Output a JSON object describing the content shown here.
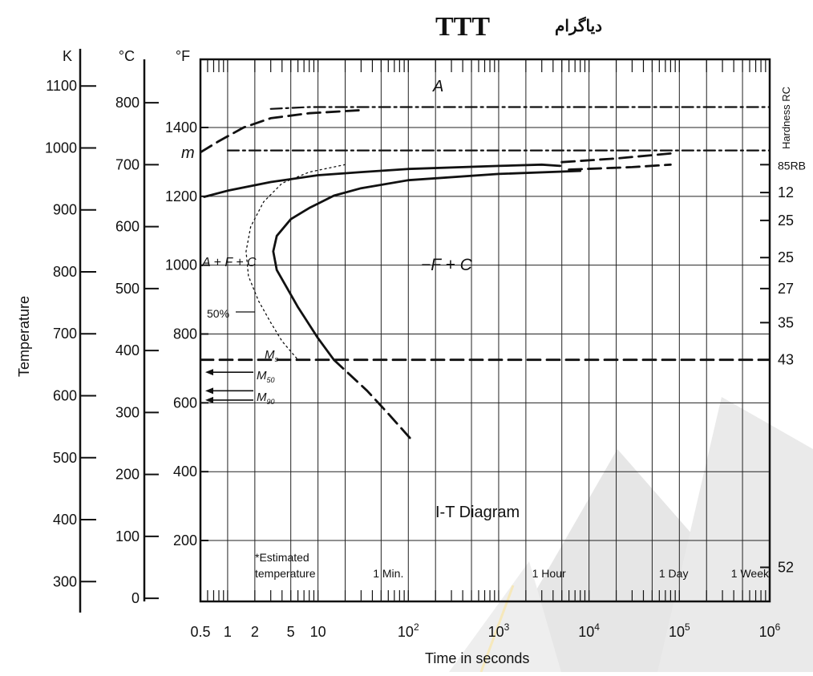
{
  "title": {
    "main": "TTT",
    "persian": "دیاگرام"
  },
  "chart_data": {
    "type": "line",
    "title": "I-T Diagram",
    "xlabel": "Time in seconds",
    "ylabel": "Temperature",
    "x_scale": "log",
    "xlim": [
      0.5,
      1000000
    ],
    "x_ticks": [
      {
        "value": 0.5,
        "label": "0.5"
      },
      {
        "value": 1,
        "label": "1"
      },
      {
        "value": 2,
        "label": "2"
      },
      {
        "value": 5,
        "label": "5"
      },
      {
        "value": 10,
        "label": "10"
      },
      {
        "value": 100,
        "label": "10",
        "sup": "2"
      },
      {
        "value": 1000,
        "label": "10",
        "sup": "3"
      },
      {
        "value": 10000,
        "label": "10",
        "sup": "4"
      },
      {
        "value": 100000,
        "label": "10",
        "sup": "5"
      },
      {
        "value": 1000000,
        "label": "10",
        "sup": "6"
      }
    ],
    "time_markers": [
      {
        "label": "1 Min.",
        "value": 60
      },
      {
        "label": "1 Hour",
        "value": 3600
      },
      {
        "label": "1 Day",
        "value": 86400
      },
      {
        "label": "1 Week",
        "value": 604800
      }
    ],
    "axes": {
      "kelvin": {
        "unit": "K",
        "ticks": [
          300,
          400,
          500,
          600,
          700,
          800,
          900,
          1000,
          1100
        ]
      },
      "celsius": {
        "unit": "°C",
        "ticks": [
          0,
          100,
          200,
          300,
          400,
          500,
          600,
          700,
          800
        ]
      },
      "fahrenheit": {
        "unit": "°F",
        "ticks": [
          200,
          400,
          600,
          800,
          1000,
          1200,
          1400
        ]
      }
    },
    "ylim_c": [
      -5,
      870
    ],
    "hardness": {
      "title": "Hardness RC",
      "labels": [
        {
          "label": "85RB",
          "c": 700
        },
        {
          "label": "12",
          "c": 655
        },
        {
          "label": "25",
          "c": 610
        },
        {
          "label": "25",
          "c": 550
        },
        {
          "label": "27",
          "c": 500
        },
        {
          "label": "35",
          "c": 445
        },
        {
          "label": "43",
          "c": 385
        },
        {
          "label": "52",
          "c": 50
        }
      ]
    },
    "region_labels": {
      "A": "A",
      "m": "m",
      "AFC": "A + F + C",
      "FC": "−F + C",
      "pct50": "50%",
      "Ms": "Ms",
      "M50": "M50",
      "M90": "M90",
      "Ms_main": "M",
      "Ms_sub": "s",
      "M50_main": "M",
      "M50_sub": "50",
      "M90_main": "M",
      "M90_sub": "90",
      "estimated_line1": "*Estimated",
      "estimated_line2": "temperature"
    },
    "series": [
      {
        "style": "solid",
        "points": [
          [
            4800,
            698
          ],
          [
            3000,
            700
          ],
          [
            1000,
            698
          ],
          [
            100,
            693
          ],
          [
            30,
            688
          ],
          [
            10,
            683
          ],
          [
            3,
            672
          ],
          [
            1,
            658
          ],
          [
            0.55,
            648
          ]
        ]
      },
      {
        "style": "dashed",
        "points": [
          [
            5000,
            704
          ],
          [
            20000,
            710
          ],
          [
            80000,
            718
          ]
        ]
      },
      {
        "style": "dashed",
        "points": [
          [
            6000,
            692
          ],
          [
            30000,
            696
          ],
          [
            80000,
            700
          ]
        ]
      },
      {
        "style": "solid",
        "points": [
          [
            8000,
            690
          ],
          [
            1000,
            685
          ],
          [
            100,
            675
          ],
          [
            30,
            662
          ],
          [
            15,
            650
          ],
          [
            8,
            630
          ],
          [
            5,
            612
          ],
          [
            3.5,
            585
          ],
          [
            3.2,
            560
          ],
          [
            3.5,
            530
          ],
          [
            6,
            470
          ],
          [
            10,
            420
          ],
          [
            15,
            385
          ]
        ]
      },
      {
        "style": "dashed",
        "points": [
          [
            15,
            385
          ],
          [
            35,
            335
          ],
          [
            60,
            298
          ],
          [
            110,
            255
          ]
        ]
      },
      {
        "style": "dashed",
        "points": [
          [
            0.5,
            720
          ],
          [
            0.8,
            738
          ],
          [
            1.5,
            760
          ],
          [
            3,
            775
          ],
          [
            8,
            783
          ],
          [
            30,
            788
          ]
        ]
      },
      {
        "style": "dotted",
        "points": [
          [
            20,
            700
          ],
          [
            8,
            688
          ],
          [
            4,
            670
          ],
          [
            2.5,
            640
          ],
          [
            1.8,
            600
          ],
          [
            1.6,
            560
          ],
          [
            1.7,
            520
          ],
          [
            2.2,
            480
          ],
          [
            3,
            445
          ],
          [
            4,
            415
          ],
          [
            6,
            385
          ]
        ]
      },
      {
        "style": "dashdot",
        "points": [
          [
            3,
            790
          ],
          [
            8,
            793
          ],
          [
            30,
            793
          ],
          [
            100,
            793
          ],
          [
            1000000,
            793
          ]
        ]
      },
      {
        "style": "dashdot",
        "points": [
          [
            1,
            723
          ],
          [
            10,
            723
          ],
          [
            100,
            723
          ],
          [
            10000,
            723
          ],
          [
            1000000,
            723
          ]
        ]
      },
      {
        "style": "dashed",
        "points": [
          [
            0.5,
            385
          ],
          [
            1000000,
            385
          ]
        ]
      }
    ]
  }
}
